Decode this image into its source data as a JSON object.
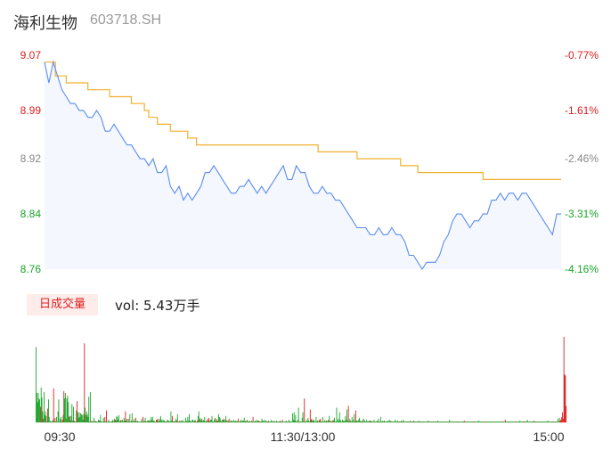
{
  "header": {
    "name": "海利生物",
    "code": "603718.SH"
  },
  "volume_panel": {
    "tag": "日成交量",
    "vol_label": "vol: 5.43万手"
  },
  "colors": {
    "up": "#e02020",
    "down": "#1aa52a",
    "price_line": "#5b8def",
    "avg_line": "#f0b030",
    "area": "#f4f7fd"
  },
  "chart_data": [
    {
      "type": "line",
      "y_ticks": [
        "9.07",
        "8.99",
        "8.92",
        "8.84",
        "8.76"
      ],
      "y_tick_values": [
        9.07,
        8.99,
        8.92,
        8.84,
        8.76
      ],
      "y_tick_colors": [
        "#e02020",
        "#e02020",
        "#888888",
        "#1aa52a",
        "#1aa52a"
      ],
      "pct_ticks": [
        "-0.77%",
        "-1.61%",
        "-2.46%",
        "-3.31%",
        "-4.16%"
      ],
      "pct_tick_colors": [
        "#e02020",
        "#e02020",
        "#888888",
        "#1aa52a",
        "#1aa52a"
      ],
      "ylim": [
        8.76,
        9.07
      ],
      "x_labels": [
        "09:30",
        "11:30/13:00",
        "15:00"
      ],
      "price_points": [
        [
          0,
          9.06
        ],
        [
          2,
          9.03
        ],
        [
          4,
          9.06
        ],
        [
          6,
          9.04
        ],
        [
          8,
          9.02
        ],
        [
          10,
          9.01
        ],
        [
          12,
          9.0
        ],
        [
          14,
          9.0
        ],
        [
          16,
          8.99
        ],
        [
          18,
          8.99
        ],
        [
          20,
          8.98
        ],
        [
          22,
          8.98
        ],
        [
          24,
          8.99
        ],
        [
          26,
          8.98
        ],
        [
          28,
          8.96
        ],
        [
          30,
          8.96
        ],
        [
          32,
          8.97
        ],
        [
          34,
          8.96
        ],
        [
          36,
          8.95
        ],
        [
          38,
          8.94
        ],
        [
          40,
          8.94
        ],
        [
          42,
          8.93
        ],
        [
          44,
          8.92
        ],
        [
          46,
          8.92
        ],
        [
          48,
          8.91
        ],
        [
          50,
          8.92
        ],
        [
          52,
          8.9
        ],
        [
          54,
          8.9
        ],
        [
          56,
          8.91
        ],
        [
          58,
          8.88
        ],
        [
          60,
          8.87
        ],
        [
          62,
          8.88
        ],
        [
          64,
          8.86
        ],
        [
          66,
          8.87
        ],
        [
          68,
          8.86
        ],
        [
          70,
          8.87
        ],
        [
          72,
          8.88
        ],
        [
          74,
          8.9
        ],
        [
          76,
          8.9
        ],
        [
          78,
          8.91
        ],
        [
          80,
          8.9
        ],
        [
          82,
          8.89
        ],
        [
          84,
          8.88
        ],
        [
          86,
          8.87
        ],
        [
          88,
          8.87
        ],
        [
          90,
          8.88
        ],
        [
          92,
          8.88
        ],
        [
          94,
          8.89
        ],
        [
          96,
          8.88
        ],
        [
          98,
          8.87
        ],
        [
          100,
          8.88
        ],
        [
          102,
          8.87
        ],
        [
          104,
          8.88
        ],
        [
          106,
          8.89
        ],
        [
          108,
          8.9
        ],
        [
          110,
          8.91
        ],
        [
          112,
          8.89
        ],
        [
          114,
          8.89
        ],
        [
          116,
          8.91
        ],
        [
          118,
          8.9
        ],
        [
          120,
          8.9
        ],
        [
          122,
          8.88
        ],
        [
          124,
          8.87
        ],
        [
          126,
          8.87
        ],
        [
          128,
          8.88
        ],
        [
          130,
          8.87
        ],
        [
          132,
          8.87
        ],
        [
          134,
          8.86
        ],
        [
          136,
          8.86
        ],
        [
          138,
          8.85
        ],
        [
          140,
          8.84
        ],
        [
          142,
          8.83
        ],
        [
          144,
          8.82
        ],
        [
          146,
          8.82
        ],
        [
          148,
          8.82
        ],
        [
          150,
          8.81
        ],
        [
          152,
          8.81
        ],
        [
          154,
          8.82
        ],
        [
          156,
          8.81
        ],
        [
          158,
          8.81
        ],
        [
          160,
          8.82
        ],
        [
          162,
          8.81
        ],
        [
          164,
          8.81
        ],
        [
          166,
          8.8
        ],
        [
          168,
          8.78
        ],
        [
          170,
          8.78
        ],
        [
          172,
          8.77
        ],
        [
          174,
          8.76
        ],
        [
          176,
          8.77
        ],
        [
          178,
          8.77
        ],
        [
          180,
          8.77
        ],
        [
          182,
          8.78
        ],
        [
          184,
          8.8
        ],
        [
          186,
          8.81
        ],
        [
          188,
          8.83
        ],
        [
          190,
          8.84
        ],
        [
          192,
          8.84
        ],
        [
          194,
          8.83
        ],
        [
          196,
          8.82
        ],
        [
          198,
          8.83
        ],
        [
          200,
          8.83
        ],
        [
          202,
          8.84
        ],
        [
          204,
          8.84
        ],
        [
          206,
          8.86
        ],
        [
          208,
          8.86
        ],
        [
          210,
          8.87
        ],
        [
          212,
          8.86
        ],
        [
          214,
          8.87
        ],
        [
          216,
          8.87
        ],
        [
          218,
          8.86
        ],
        [
          220,
          8.87
        ],
        [
          222,
          8.87
        ],
        [
          224,
          8.86
        ],
        [
          226,
          8.85
        ],
        [
          228,
          8.84
        ],
        [
          230,
          8.83
        ],
        [
          232,
          8.82
        ],
        [
          234,
          8.81
        ],
        [
          236,
          8.84
        ],
        [
          238,
          8.84
        ]
      ],
      "avg_points": [
        [
          0,
          9.06
        ],
        [
          5,
          9.04
        ],
        [
          10,
          9.03
        ],
        [
          20,
          9.02
        ],
        [
          30,
          9.01
        ],
        [
          40,
          9.0
        ],
        [
          46,
          8.99
        ],
        [
          48,
          8.98
        ],
        [
          52,
          8.97
        ],
        [
          58,
          8.96
        ],
        [
          66,
          8.95
        ],
        [
          70,
          8.94
        ],
        [
          80,
          8.94
        ],
        [
          100,
          8.94
        ],
        [
          110,
          8.94
        ],
        [
          120,
          8.94
        ],
        [
          126,
          8.93
        ],
        [
          140,
          8.93
        ],
        [
          144,
          8.92
        ],
        [
          160,
          8.92
        ],
        [
          164,
          8.91
        ],
        [
          170,
          8.91
        ],
        [
          172,
          8.9
        ],
        [
          200,
          8.9
        ],
        [
          202,
          8.89
        ],
        [
          238,
          8.89
        ]
      ]
    },
    {
      "type": "bar",
      "title": "日成交量",
      "vol_values": [
        82,
        32,
        22,
        32,
        26,
        25,
        17,
        38,
        27,
        12,
        4,
        33,
        8,
        12,
        7,
        1,
        15,
        25,
        6,
        1,
        2,
        1,
        1,
        3,
        37,
        1,
        5,
        1,
        6,
        1,
        12,
        25,
        1,
        4,
        6,
        1,
        3,
        8,
        34,
        26,
        32,
        4,
        26,
        29,
        22,
        6,
        7,
        2,
        7,
        20,
        2,
        17,
        2,
        1,
        1,
        13,
        23,
        11,
        5,
        11,
        6,
        10,
        9,
        8,
        3,
        9,
        86,
        16,
        8,
        12,
        9,
        6,
        28,
        1,
        33,
        1,
        2,
        1,
        1,
        5,
        1,
        2,
        1,
        1,
        1,
        3,
        2,
        2,
        8,
        1,
        1,
        1,
        5,
        1,
        6,
        1,
        13,
        1,
        1,
        3,
        1,
        1,
        1,
        1,
        2,
        3,
        1,
        4,
        3,
        2,
        7,
        6,
        3,
        8,
        1,
        2,
        3,
        1,
        3,
        1,
        5,
        2,
        12,
        2,
        4,
        1,
        4,
        1,
        9,
        1,
        2,
        10,
        1,
        2,
        4,
        1,
        5,
        1,
        2,
        1,
        1,
        1,
        1,
        1,
        4,
        1,
        6,
        1,
        2,
        5,
        1,
        1,
        2,
        2,
        3,
        1,
        2,
        6,
        3,
        6,
        2,
        2,
        1,
        1,
        3,
        3,
        4,
        1,
        2,
        4,
        7,
        2,
        3,
        1,
        3,
        2,
        1,
        1,
        1,
        3,
        2,
        2,
        1,
        1,
        12,
        2,
        7,
        1,
        1,
        2,
        1,
        4,
        2,
        9,
        1,
        1,
        2,
        1,
        2,
        1,
        3,
        1,
        1,
        1,
        5,
        2,
        1,
        6,
        2,
        9,
        2,
        1,
        1,
        3,
        3,
        1,
        2,
        3,
        1,
        1,
        2,
        7,
        12,
        3,
        5,
        2,
        4,
        1,
        3,
        2,
        6,
        1,
        2,
        1,
        4,
        2,
        5,
        1,
        3,
        3,
        7,
        1,
        1,
        3,
        5,
        1,
        4,
        2,
        2,
        9,
        6,
        5,
        2,
        1,
        3,
        3,
        4,
        1,
        3,
        7,
        2,
        1,
        3,
        1,
        4,
        1,
        2,
        1,
        2,
        1,
        3,
        1,
        2,
        1,
        2,
        1,
        4,
        1,
        1,
        2,
        3,
        1,
        2,
        2,
        5,
        1,
        2,
        1,
        3,
        1,
        1,
        2,
        1,
        1,
        2,
        1,
        6,
        1,
        1,
        2,
        1,
        3,
        1,
        2,
        2,
        1,
        1,
        1,
        4,
        2,
        2,
        1,
        3,
        1,
        2,
        1,
        1,
        2,
        1,
        1,
        1,
        3,
        1,
        1,
        2,
        1,
        1,
        1,
        2,
        1,
        1,
        1,
        1,
        2,
        1,
        1,
        3,
        1,
        1,
        1,
        1,
        2,
        1,
        1,
        1,
        3,
        1,
        1,
        1,
        1,
        10,
        3,
        11,
        2,
        8,
        1,
        1,
        3,
        16,
        1,
        1,
        1,
        1,
        5,
        11,
        1,
        26,
        1,
        1,
        3,
        1,
        5,
        2,
        1,
        14,
        3,
        4,
        2,
        2,
        3,
        1,
        1,
        6,
        1,
        2,
        1,
        3,
        2,
        4,
        1,
        1,
        6,
        1,
        1,
        3,
        1,
        2,
        1,
        2,
        3,
        7,
        1,
        2,
        1,
        1,
        3,
        2,
        5,
        1,
        1,
        16,
        1,
        4,
        2,
        11,
        3,
        1,
        1,
        3,
        2,
        2,
        1,
        7,
        3,
        14,
        2,
        18,
        1,
        4,
        2,
        1,
        6,
        1,
        3,
        9,
        1,
        13,
        2,
        2,
        1,
        3,
        5,
        2,
        1,
        1,
        3,
        1,
        4,
        2,
        1,
        1,
        3,
        1,
        1,
        2,
        1,
        2,
        2,
        1,
        1,
        1,
        3,
        1,
        1,
        1,
        2,
        1,
        4,
        1,
        1,
        6,
        1,
        1,
        2,
        1,
        2,
        1,
        1,
        1,
        1,
        2,
        1,
        3,
        1,
        2,
        1,
        1,
        1,
        1,
        1,
        3,
        1,
        1,
        2,
        1,
        1,
        1,
        1,
        2,
        1,
        1,
        3,
        1,
        1,
        1,
        1,
        1,
        1,
        1,
        1,
        2,
        1,
        1,
        1,
        1,
        2,
        1,
        1,
        1,
        1,
        1,
        1,
        2,
        1,
        1,
        1,
        1,
        1,
        1,
        1,
        1,
        1,
        1,
        1,
        1,
        2,
        1,
        1,
        1,
        1,
        1,
        1,
        1,
        1,
        1,
        1,
        1,
        1,
        2,
        1,
        1,
        1,
        1,
        1,
        1,
        1,
        1,
        1,
        1,
        1,
        1,
        1,
        1,
        1,
        3,
        1,
        1,
        1,
        1,
        1,
        1,
        1,
        1,
        1,
        1,
        1,
        1,
        1,
        1,
        1,
        1,
        1,
        1,
        1,
        2,
        1,
        1,
        1,
        1,
        1,
        1,
        1,
        1,
        1,
        1,
        1,
        1,
        1,
        1,
        1,
        1,
        1,
        1,
        1,
        2,
        1,
        1,
        1,
        1,
        1,
        1,
        1,
        1,
        1,
        1,
        1,
        1,
        1,
        1,
        1,
        1,
        1,
        1,
        1,
        1,
        1,
        1,
        1,
        1,
        1,
        1,
        1,
        1,
        1,
        1,
        1,
        1,
        1,
        1,
        1,
        3,
        1,
        1,
        1,
        1,
        1,
        1,
        1,
        1,
        1,
        1,
        1,
        1,
        1,
        1,
        1,
        1,
        1,
        1,
        1,
        2,
        1,
        1,
        1,
        1,
        1,
        1,
        1,
        1,
        1,
        3,
        1,
        1,
        1,
        1,
        1,
        1,
        1,
        1,
        2,
        1,
        1,
        1,
        1,
        1,
        1,
        1,
        1,
        1,
        1,
        1,
        1,
        1,
        1,
        1,
        1,
        1,
        1,
        2,
        1,
        1,
        1,
        1,
        1,
        1,
        1,
        1,
        1,
        1,
        1,
        1,
        1,
        4,
        1,
        5,
        2,
        3,
        6,
        11,
        4,
        93,
        52,
        51,
        18
      ]
    }
  ]
}
